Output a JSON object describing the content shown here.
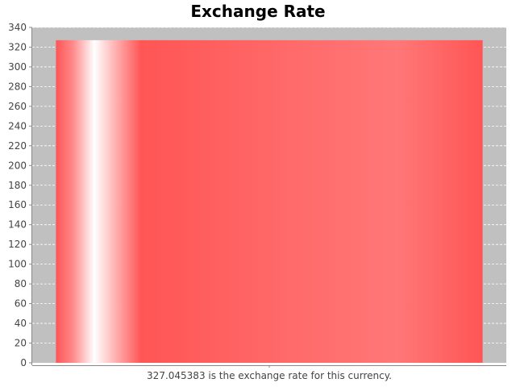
{
  "chart_data": {
    "type": "bar",
    "title": "Exchange Rate",
    "xlabel": "",
    "ylabel": "",
    "categories": [
      "327.045383 is the exchange rate for this currency."
    ],
    "series": [
      {
        "values": [
          327.045383
        ]
      }
    ],
    "ylim": [
      0,
      340
    ],
    "y_ticks": [
      0,
      20,
      40,
      60,
      80,
      100,
      120,
      140,
      160,
      180,
      200,
      220,
      240,
      260,
      280,
      300,
      320,
      340
    ],
    "grid": true,
    "legend": "none",
    "colors": {
      "bar": "#ff5555",
      "bar_highlight": "#ffffff",
      "plot_background": "#c0c0c0",
      "gridline": "#ffffff",
      "axis": "#888888"
    }
  }
}
